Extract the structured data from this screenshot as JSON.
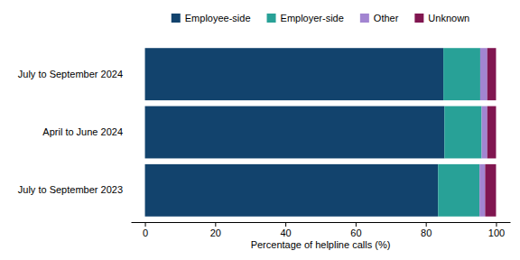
{
  "chart_data": {
    "type": "bar",
    "orientation": "horizontal",
    "stacked": true,
    "categories": [
      "July to September 2024",
      "April to June 2024",
      "July to September 2023"
    ],
    "series": [
      {
        "name": "Employee-side",
        "color": "#12436D",
        "values": [
          85,
          85.3,
          83.5
        ]
      },
      {
        "name": "Employer-side",
        "color": "#28A197",
        "values": [
          10.5,
          10.6,
          11.8
        ]
      },
      {
        "name": "Other",
        "color": "#A285D1",
        "values": [
          2,
          1.6,
          1.6
        ]
      },
      {
        "name": "Unknown",
        "color": "#801650",
        "values": [
          2.5,
          2.5,
          3.1
        ]
      }
    ],
    "x_label": "Percentage of helpline calls (%)",
    "xlim": [
      -4,
      104
    ],
    "xticks": [
      0,
      20,
      40,
      60,
      80,
      100
    ],
    "legend": "top",
    "grid": false
  }
}
